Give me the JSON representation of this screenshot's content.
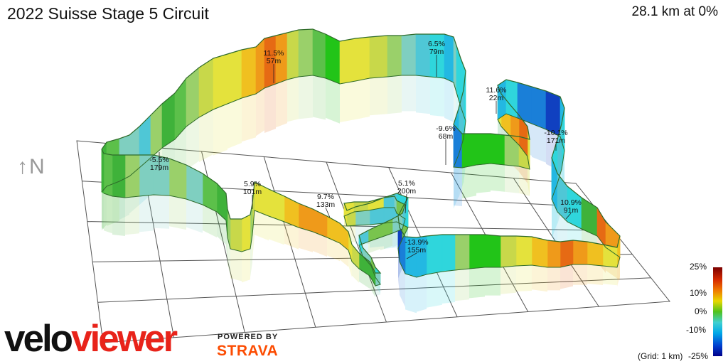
{
  "title": "2022 Suisse Stage 5 Circuit",
  "summary": "28.1 km at 0%",
  "north_label": "↑N",
  "logo": {
    "part1": "velo",
    "part2": "viewer"
  },
  "powered_by": "POWERED BY",
  "strava": "STRAVA",
  "legend": {
    "ticks": [
      "25%",
      "10%",
      "0%",
      "-10%",
      "-25%"
    ],
    "footnote": "(Grid: 1 km)"
  },
  "colors": {
    "logo_red": "#e8231a",
    "strava_orange": "#fc4c02"
  },
  "chart_data": {
    "type": "3d-route-gradient-profile",
    "title": "2022 Suisse Stage 5 Circuit",
    "distance_km": 28.1,
    "average_gradient_pct": 0,
    "grid_km": 1,
    "color_scale_pct": [
      -25,
      -10,
      0,
      10,
      25
    ],
    "annotations": [
      {
        "gradient": "11.5%",
        "length": "57m"
      },
      {
        "gradient": "6.5%",
        "length": "79m"
      },
      {
        "gradient": "11.6%",
        "length": "22m"
      },
      {
        "gradient": "-9.6%",
        "length": "68m"
      },
      {
        "gradient": "-10.1%",
        "length": "171m"
      },
      {
        "gradient": "-5.5%",
        "length": "179m"
      },
      {
        "gradient": "5.9%",
        "length": "101m"
      },
      {
        "gradient": "9.7%",
        "length": "133m"
      },
      {
        "gradient": "5.1%",
        "length": "200m"
      },
      {
        "gradient": "10.9%",
        "length": "91m"
      },
      {
        "gradient": "-13.9%",
        "length": "155m"
      }
    ]
  }
}
